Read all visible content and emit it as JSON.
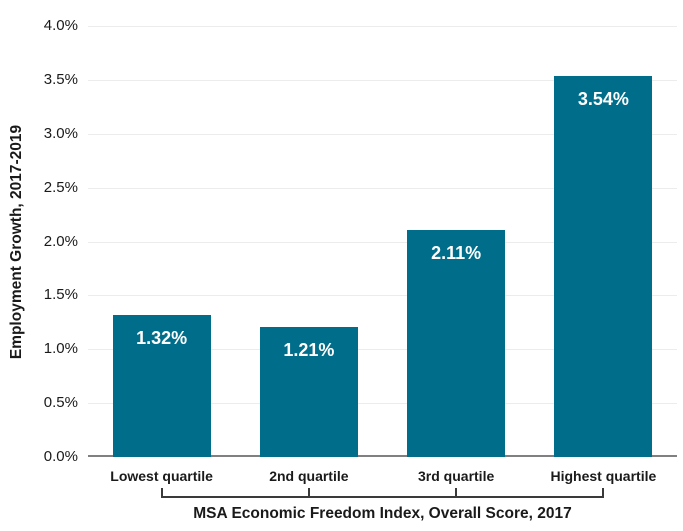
{
  "chart_data": {
    "type": "bar",
    "categories": [
      "Lowest quartile",
      "2nd quartile",
      "3rd quartile",
      "Highest quartile"
    ],
    "values": [
      1.32,
      1.21,
      2.11,
      3.54
    ],
    "value_labels": [
      "1.32%",
      "1.21%",
      "2.11%",
      "3.54%"
    ],
    "xlabel": "MSA Economic Freedom Index, Overall Score, 2017",
    "ylabel": "Employment Growth, 2017-2019",
    "ylim": [
      0,
      4.0
    ],
    "ytick_step": 0.5,
    "ytick_labels": [
      "0.0%",
      "0.5%",
      "1.0%",
      "1.5%",
      "2.0%",
      "2.5%",
      "3.0%",
      "3.5%",
      "4.0%"
    ],
    "grid": true,
    "legend": false,
    "value_labels_position": "inside-top",
    "colors": {
      "bar": "#006d8a",
      "gridline": "#ececec",
      "axis_line": "#808080",
      "bar_label": "#ffffff",
      "text": "#1a1a1a",
      "bracket": "#3a3a3a"
    }
  }
}
